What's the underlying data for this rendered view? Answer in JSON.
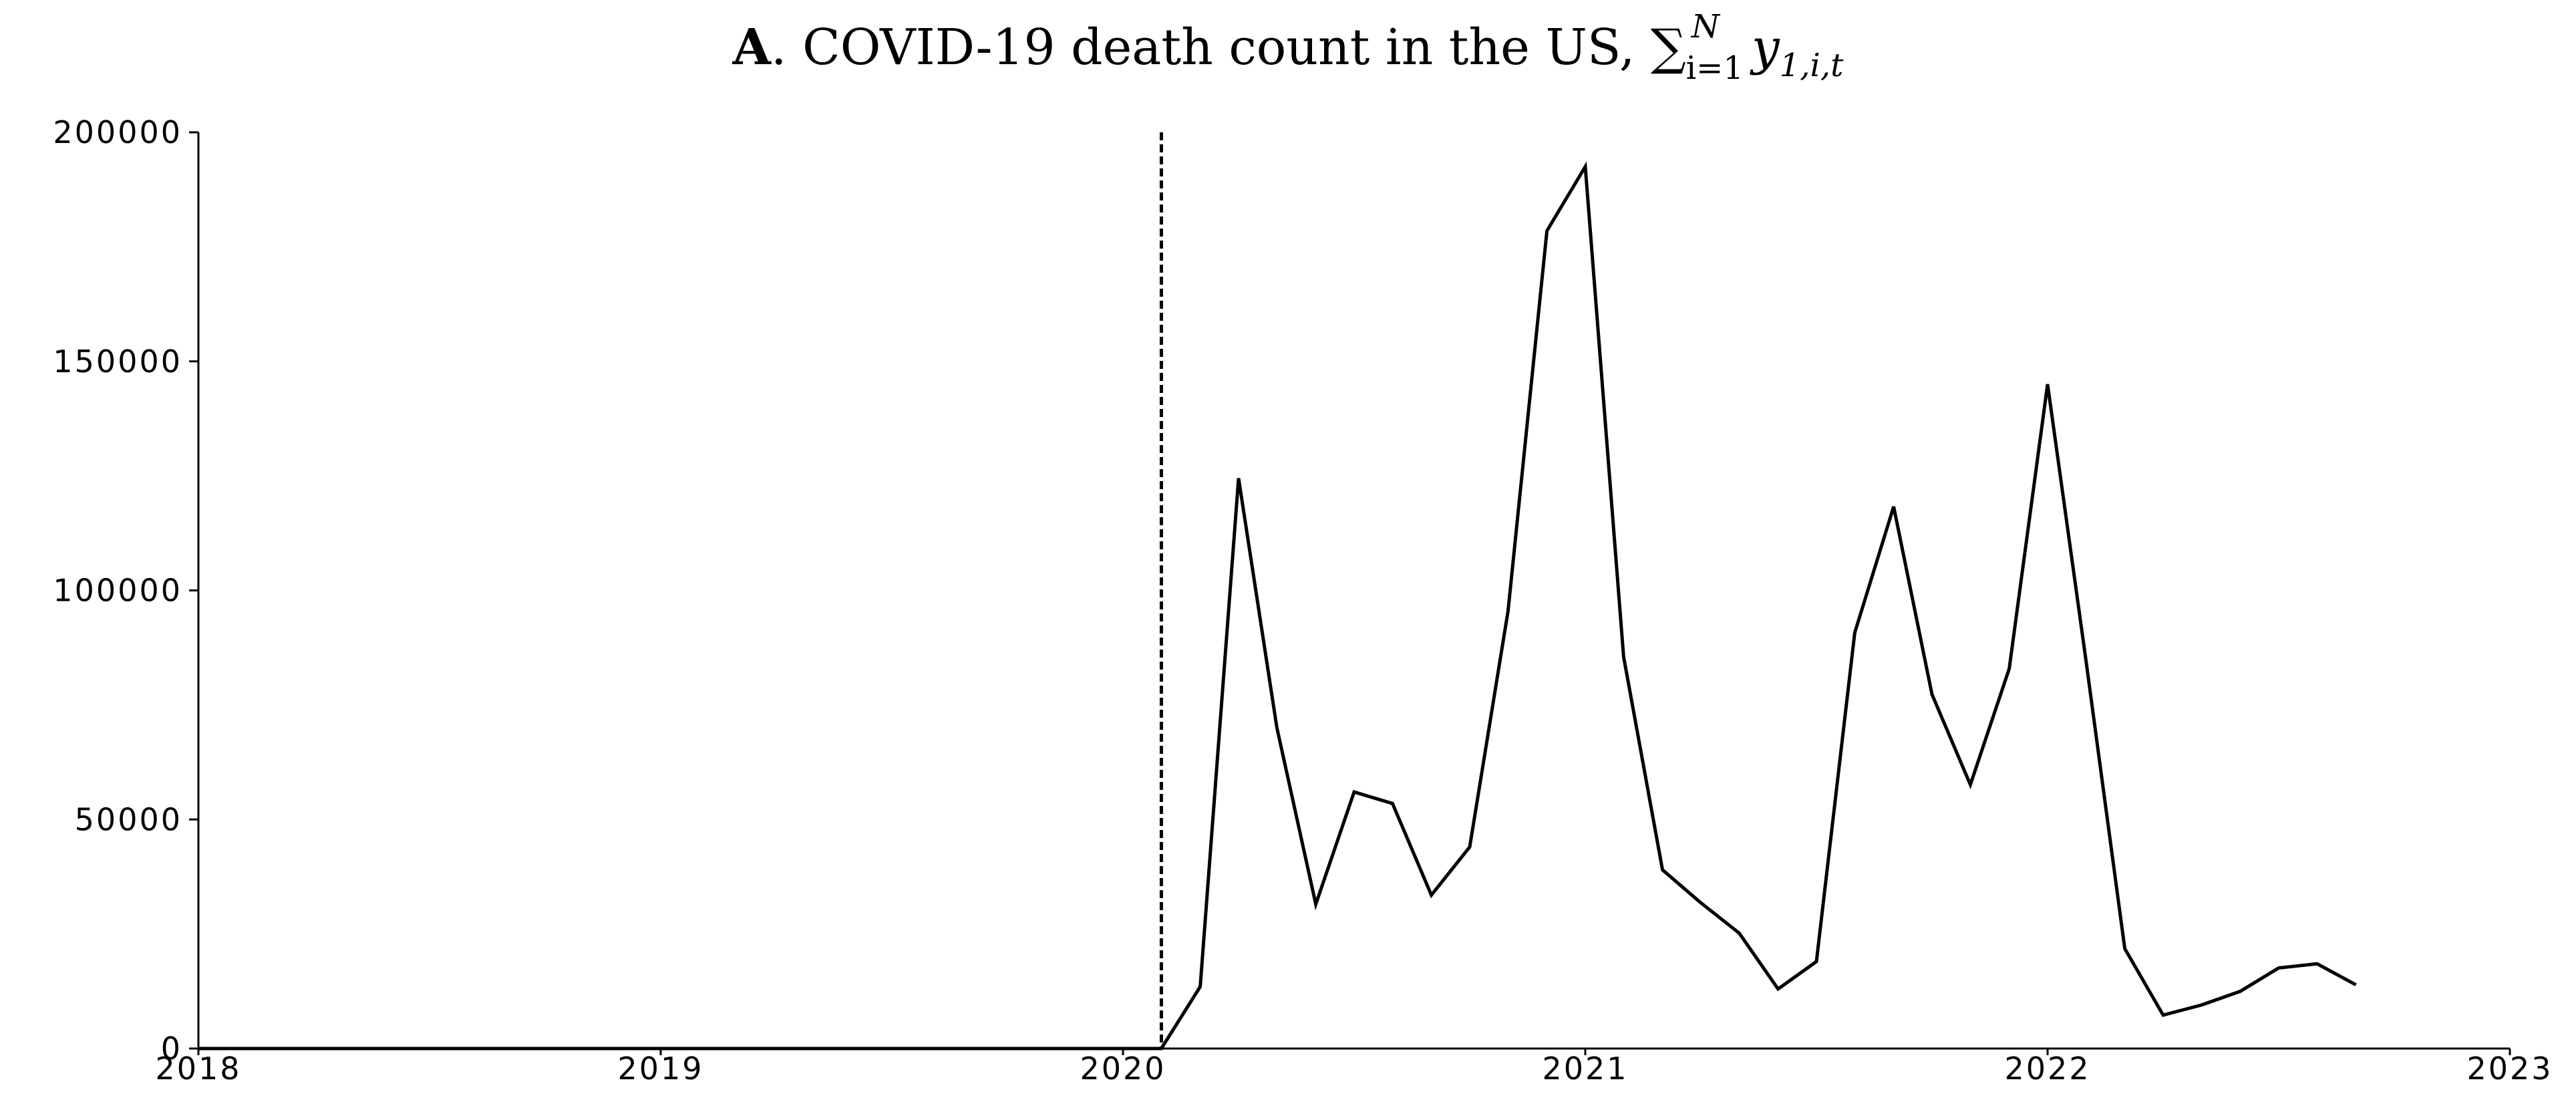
{
  "chart_data": {
    "type": "line",
    "title": {
      "panel": "A",
      "text": ". COVID-19 death count in the US, ",
      "math": "∑",
      "sub_i": "i=1",
      "sup_N": "N",
      "var": "y",
      "var_sub": "1,i,t"
    },
    "xlabel": "",
    "ylabel": "",
    "xlim": [
      2018,
      2023
    ],
    "ylim": [
      0,
      200000
    ],
    "x_ticks": [
      {
        "value": 2018,
        "label": "2018"
      },
      {
        "value": 2019,
        "label": "2019"
      },
      {
        "value": 2020,
        "label": "2020"
      },
      {
        "value": 2021,
        "label": "2021"
      },
      {
        "value": 2022,
        "label": "2022"
      },
      {
        "value": 2023,
        "label": "2023"
      }
    ],
    "y_ticks": [
      {
        "value": 0,
        "label": "0"
      },
      {
        "value": 50000,
        "label": "50000"
      },
      {
        "value": 100000,
        "label": "100000"
      },
      {
        "value": 150000,
        "label": "150000"
      },
      {
        "value": 200000,
        "label": "200000"
      }
    ],
    "vertical_marker": {
      "x": 2020.083,
      "style": "dashed"
    },
    "grid": false,
    "series": [
      {
        "color": "#000000",
        "x": [
          2018.0,
          2020.083,
          2020.167,
          2020.25,
          2020.333,
          2020.417,
          2020.5,
          2020.583,
          2020.667,
          2020.75,
          2020.833,
          2020.917,
          2021.0,
          2021.083,
          2021.167,
          2021.25,
          2021.333,
          2021.417,
          2021.5,
          2021.583,
          2021.667,
          2021.75,
          2021.833,
          2021.917,
          2022.0,
          2022.083,
          2022.167,
          2022.25,
          2022.333,
          2022.417,
          2022.5,
          2022.583,
          2022.667
        ],
        "values": [
          0,
          0,
          13500,
          124500,
          70000,
          31500,
          56000,
          53500,
          33500,
          44000,
          95500,
          178500,
          192500,
          85500,
          39000,
          31800,
          25200,
          13000,
          19000,
          90800,
          118300,
          77300,
          57600,
          82900,
          145000,
          84800,
          21800,
          7300,
          9500,
          12500,
          17600,
          18500,
          13900
        ]
      }
    ]
  }
}
